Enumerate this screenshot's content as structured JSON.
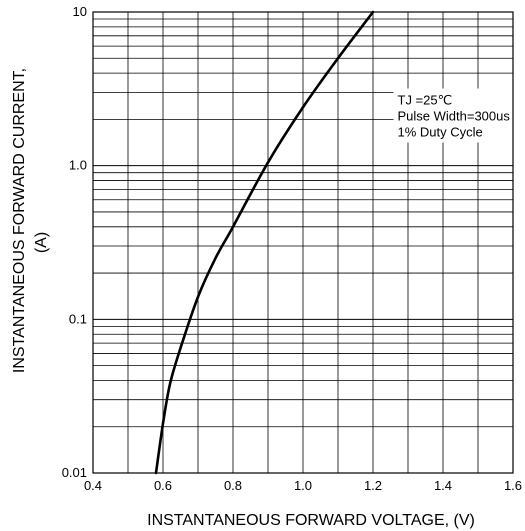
{
  "chart_data": {
    "type": "line",
    "title": "",
    "xlabel": "INSTANTANEOUS FORWARD VOLTAGE, (V)",
    "ylabel_lines": [
      "INSTANTANEOUS FORWARD CURRENT,",
      "(A)"
    ],
    "x_scale": "linear",
    "y_scale": "log",
    "xlim": [
      0.4,
      1.6
    ],
    "ylim": [
      0.01,
      10
    ],
    "x_ticks": [
      {
        "value": 0.4,
        "label": "0.4"
      },
      {
        "value": 0.6,
        "label": "0.6"
      },
      {
        "value": 0.8,
        "label": "0.8"
      },
      {
        "value": 1.0,
        "label": "1.0"
      },
      {
        "value": 1.2,
        "label": "1.2"
      },
      {
        "value": 1.4,
        "label": "1.4"
      },
      {
        "value": 1.6,
        "label": "1.6"
      }
    ],
    "y_ticks": [
      {
        "value": 0.01,
        "label": "0.01"
      },
      {
        "value": 0.1,
        "label": "0.1"
      },
      {
        "value": 1,
        "label": "1.0"
      },
      {
        "value": 10,
        "label": "10"
      }
    ],
    "grid": true,
    "annotation": {
      "lines": [
        "TJ =25℃",
        "Pulse Width=300us",
        "1% Duty Cycle"
      ],
      "x": 1.27,
      "y": 2.5
    },
    "series": [
      {
        "color": "#000000",
        "x": [
          0.58,
          0.6,
          0.62,
          0.65,
          0.7,
          0.75,
          0.8,
          0.9,
          1.0,
          1.1,
          1.2
        ],
        "y": [
          0.01,
          0.021,
          0.038,
          0.065,
          0.14,
          0.25,
          0.4,
          1.05,
          2.4,
          5.0,
          10.0
        ]
      }
    ]
  }
}
